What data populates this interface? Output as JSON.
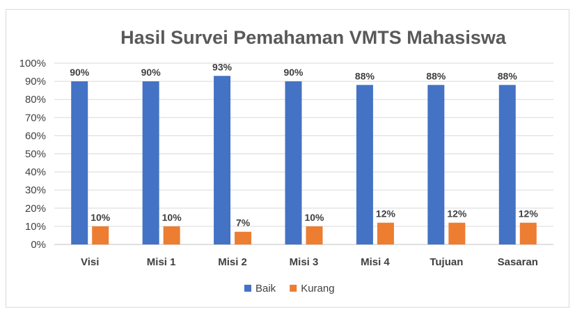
{
  "chart_data": {
    "type": "bar",
    "title": "Hasil Survei Pemahaman VMTS Mahasiswa",
    "categories": [
      "Visi",
      "Misi 1",
      "Misi 2",
      "Misi 3",
      "Misi 4",
      "Tujuan",
      "Sasaran"
    ],
    "series": [
      {
        "name": "Baik",
        "color": "#4472c4",
        "values": [
          90,
          90,
          93,
          90,
          88,
          88,
          88
        ],
        "labels": [
          "90%",
          "90%",
          "93%",
          "90%",
          "88%",
          "88%",
          "88%"
        ]
      },
      {
        "name": "Kurang",
        "color": "#ed7d31",
        "values": [
          10,
          10,
          7,
          10,
          12,
          12,
          12
        ],
        "labels": [
          "10%",
          "10%",
          "7%",
          "10%",
          "12%",
          "12%",
          "12%"
        ]
      }
    ],
    "ylim": [
      0,
      100
    ],
    "yticks": [
      0,
      10,
      20,
      30,
      40,
      50,
      60,
      70,
      80,
      90,
      100
    ],
    "ytick_labels": [
      "0%",
      "10%",
      "20%",
      "30%",
      "40%",
      "50%",
      "60%",
      "70%",
      "80%",
      "90%",
      "100%"
    ],
    "grid": true,
    "legend": "bottom"
  }
}
